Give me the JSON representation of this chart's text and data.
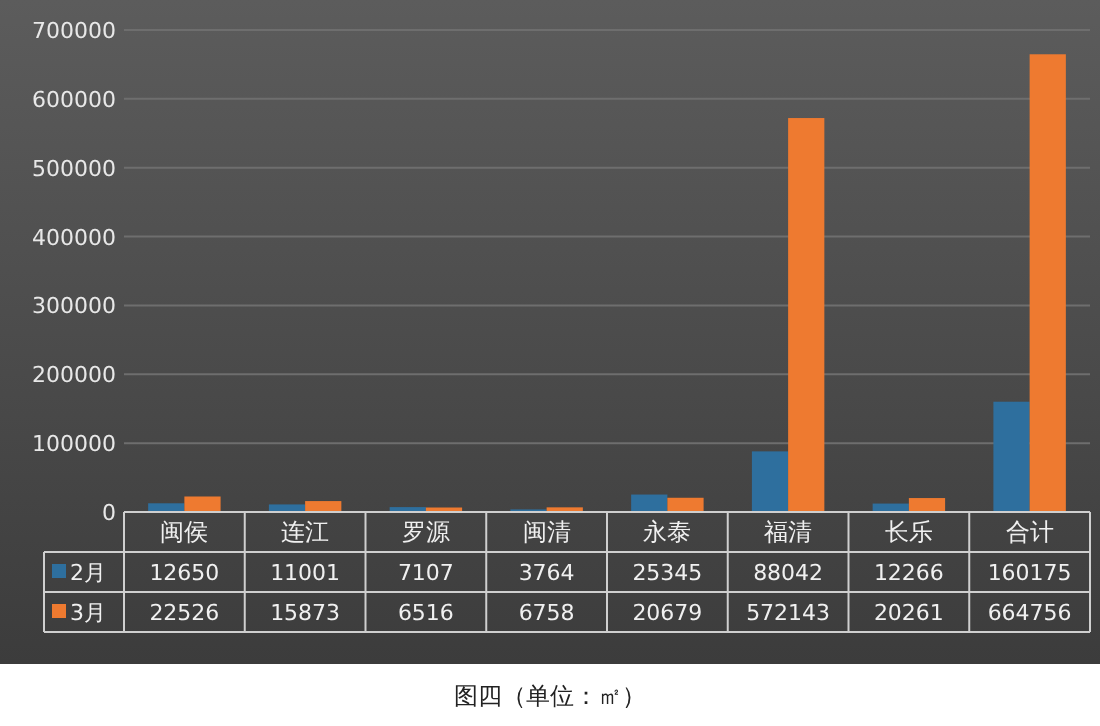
{
  "chart_data": {
    "type": "bar",
    "categories": [
      "闽侯",
      "连江",
      "罗源",
      "闽清",
      "永泰",
      "福清",
      "长乐",
      "合计"
    ],
    "series": [
      {
        "name": "2月",
        "color": "#2e6f9e",
        "values": [
          12650,
          11001,
          7107,
          3764,
          25345,
          88042,
          12266,
          160175
        ]
      },
      {
        "name": "3月",
        "color": "#ee7a30",
        "values": [
          22526,
          15873,
          6516,
          6758,
          20679,
          572143,
          20261,
          664756
        ]
      }
    ],
    "ylim": [
      0,
      700000
    ],
    "yticks": [
      0,
      100000,
      200000,
      300000,
      400000,
      500000,
      600000,
      700000
    ],
    "grid": "y",
    "legend": "bottom",
    "data_labels": true,
    "annotations": [
      "图四（单位：㎡）"
    ]
  }
}
